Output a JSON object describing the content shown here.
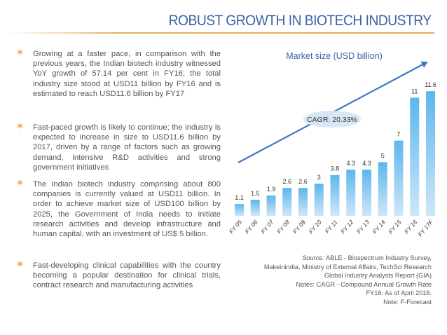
{
  "title": "ROBUST GROWTH IN BIOTECH INDUSTRY",
  "bullets": [
    {
      "text": "Growing at a faster pace, in comparison with the previous years, the Indian biotech industry witnessed YoY growth of 57.14 per cent in FY16; the total industry size stood at USD11 billion by FY16 and is estimated to reach USD11.6 billion by FY17"
    },
    {
      "text": "Fast-paced growth is likely to continue; the industry is expected to increase in size to USD11.6 billion by 2017, driven by a range of factors such as growing demand, intensive R&D activities and strong government initiatives"
    },
    {
      "text": "The Indian biotech industry comprising about 800 companies is currently valued at USD11 billion. In order to achieve market size of USD100 billion by 2025, the Government of India needs to initiate research activities and develop infrastructure and human capital, with an investment of US$ 5 billion."
    },
    {
      "text": "Fast-developing clinical capabilities with the country becoming a popular destination for clinical trials, contract research and manufacturing activities"
    }
  ],
  "chart_data": {
    "type": "bar",
    "title": "Market size (USD billion)",
    "categories": [
      "FY 05",
      "FY 06",
      "FY 07",
      "FY 08",
      "FY 09",
      "FY 10",
      "FY 11",
      "FY 12",
      "FY 13",
      "FY 14",
      "FY 15",
      "FY 16",
      "FY 17F"
    ],
    "values": [
      1.1,
      1.5,
      1.9,
      2.6,
      2.6,
      3,
      3.8,
      4.3,
      4.3,
      5,
      7,
      11,
      11.6
    ],
    "value_labels": [
      "1.1",
      "1.5",
      "1.9",
      "2.6",
      "2.6",
      "3",
      "3.8",
      "4.3",
      "4.3",
      "5",
      "7",
      "11",
      "11.6"
    ],
    "annotation": "CAGR: 20.33%",
    "ylim": [
      0,
      12
    ],
    "grid": false,
    "legend": "none",
    "colors": {
      "bar_bottom": "#cfe7f8",
      "bar_top": "#5cb6ec",
      "trend_arrow": "#3f77c4",
      "label_text": "#333333",
      "title_text": "#3b63a8"
    }
  },
  "source": {
    "label": "Source:",
    "lines": [
      "ABLE - Biospectrum Industry Survey,",
      "Makeinindia, Ministry of External Affairs, TechSci Research",
      "Global Industry Analysts Report (GIA)",
      "Notes: CAGR - Compound Annual Growth Rate",
      "FY16: As of April 2016.",
      "Note: F-Forecast"
    ]
  },
  "colors": {
    "title": "#3b63a8",
    "accent_rule": "#e8a856",
    "bullet_star": "#f0a33a",
    "body_text": "#555555"
  }
}
